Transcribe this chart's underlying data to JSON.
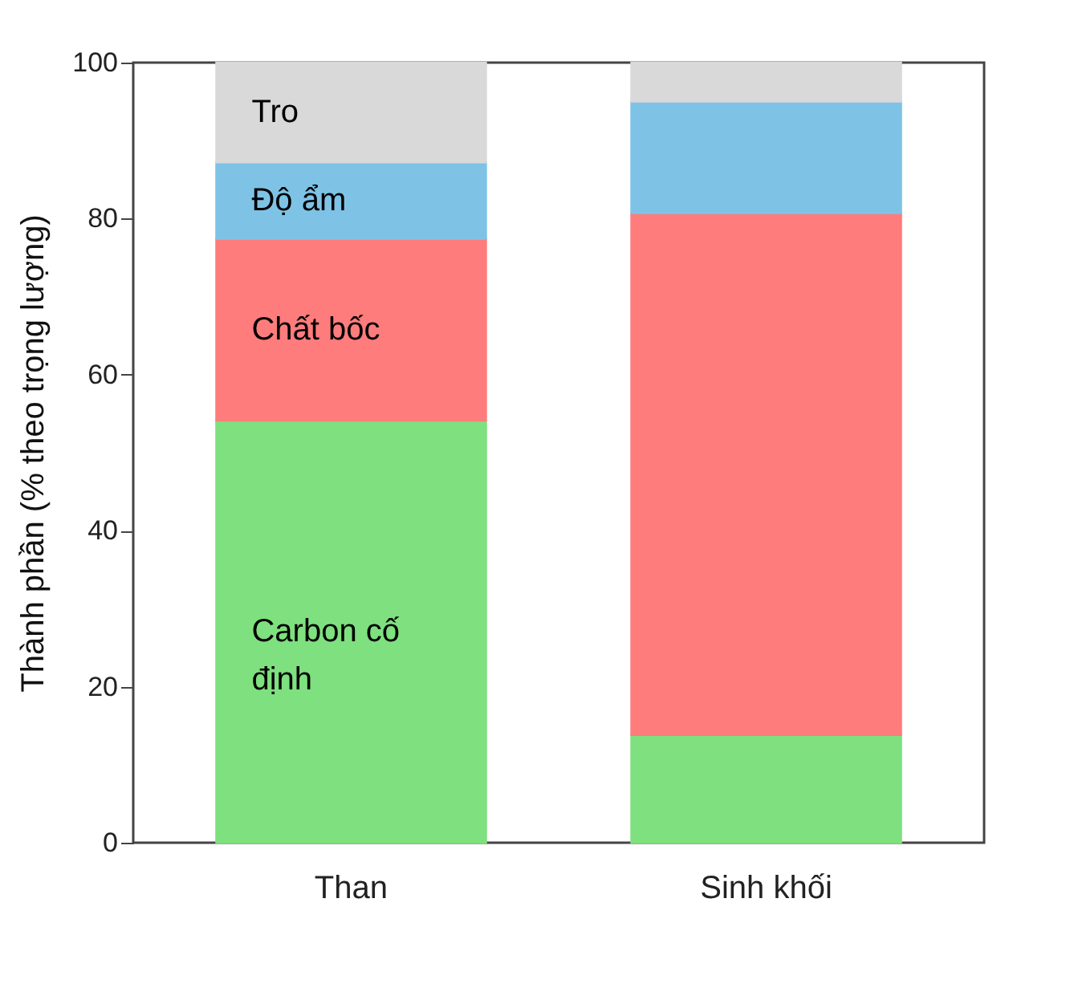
{
  "chart_data": {
    "type": "bar",
    "stacked": true,
    "ylabel": "Thành phần (% theo trọng lượng)",
    "categories": [
      "Than",
      "Sinh khối"
    ],
    "series": [
      {
        "name": "Carbon cố định",
        "color": "#7ee07e",
        "values": [
          54.1,
          13.8
        ]
      },
      {
        "name": "Chất bốc",
        "color": "#ff7c7c",
        "values": [
          23.3,
          66.9
        ]
      },
      {
        "name": "Độ ẩm",
        "color": "#7ec3e6",
        "values": [
          9.8,
          14.3
        ]
      },
      {
        "name": "Tro",
        "color": "#d9d9d9",
        "values": [
          12.8,
          5.0
        ]
      }
    ],
    "ylim": [
      0,
      100
    ],
    "yticks": [
      0,
      20,
      40,
      60,
      80,
      100
    ],
    "grid": false,
    "legend": false
  }
}
